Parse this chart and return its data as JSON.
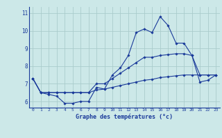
{
  "title": "Graphe des températures (°c)",
  "bg_color": "#cce8e8",
  "grid_color": "#aacccc",
  "line_color": "#1a3a9a",
  "axis_color": "#3355aa",
  "x_hours": [
    0,
    1,
    2,
    3,
    4,
    5,
    6,
    7,
    8,
    9,
    10,
    11,
    12,
    13,
    14,
    15,
    16,
    17,
    18,
    19,
    20,
    21,
    22,
    23
  ],
  "line1": [
    7.3,
    6.5,
    6.4,
    6.3,
    5.9,
    5.9,
    6.0,
    6.0,
    6.8,
    6.7,
    7.5,
    7.9,
    8.6,
    9.9,
    10.1,
    9.9,
    10.8,
    10.3,
    9.3,
    9.3,
    8.6,
    7.1,
    7.2,
    7.5
  ],
  "line2": [
    7.3,
    6.5,
    6.5,
    6.5,
    6.5,
    6.5,
    6.5,
    6.5,
    6.65,
    6.7,
    6.8,
    6.9,
    7.0,
    7.1,
    7.2,
    7.25,
    7.35,
    7.4,
    7.45,
    7.5,
    7.5,
    7.5,
    7.5,
    7.5
  ],
  "line3": [
    7.3,
    6.5,
    6.5,
    6.5,
    6.5,
    6.5,
    6.5,
    6.5,
    7.0,
    7.0,
    7.3,
    7.6,
    7.9,
    8.2,
    8.5,
    8.5,
    8.6,
    8.65,
    8.7,
    8.7,
    8.6,
    7.5,
    7.5,
    7.5
  ],
  "ylim": [
    5.65,
    11.35
  ],
  "yticks": [
    6,
    7,
    8,
    9,
    10,
    11
  ],
  "xticks": [
    0,
    1,
    2,
    3,
    4,
    5,
    6,
    7,
    8,
    9,
    10,
    11,
    12,
    13,
    14,
    15,
    16,
    17,
    18,
    19,
    20,
    21,
    22,
    23
  ],
  "xlabel_bold": true
}
